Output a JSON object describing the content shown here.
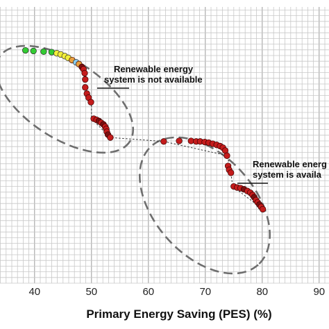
{
  "chart_data": {
    "type": "scatter",
    "xlabel": "Primary Energy Saving (PES) (%)",
    "ylabel": "",
    "title": "",
    "xlim": [
      38,
      96
    ],
    "xticks": [
      40,
      50,
      60,
      70,
      80,
      90
    ],
    "grid": true,
    "colors": {
      "red": "#c41c1c",
      "dark_red": "#7a1010",
      "green": "#33cc33",
      "yellow": "#f2ee3a",
      "light_blue": "#88ccee",
      "orange": "#e8a040",
      "ellipse": "#6e6e6e"
    },
    "annotations": [
      {
        "id": "not-available",
        "lines": [
          "Renewable energy",
          "system is not available"
        ]
      },
      {
        "id": "available",
        "lines": [
          "Renewable energ",
          "system is availa"
        ]
      }
    ],
    "series": [
      {
        "points": [
          {
            "x": 38.4,
            "y": 40.9,
            "c": "green"
          },
          {
            "x": 39.8,
            "y": 40.8,
            "c": "green"
          },
          {
            "x": 41.6,
            "y": 40.7,
            "c": "green"
          },
          {
            "x": 43.0,
            "y": 40.6,
            "c": "green"
          },
          {
            "x": 43.9,
            "y": 40.4,
            "c": "yellow"
          },
          {
            "x": 44.6,
            "y": 40.2,
            "c": "yellow"
          },
          {
            "x": 45.3,
            "y": 39.9,
            "c": "yellow"
          },
          {
            "x": 45.9,
            "y": 39.6,
            "c": "yellow"
          },
          {
            "x": 46.6,
            "y": 39.2,
            "c": "orange"
          },
          {
            "x": 47.3,
            "y": 38.8,
            "c": "light_blue"
          },
          {
            "x": 47.8,
            "y": 38.5,
            "c": "orange"
          },
          {
            "x": 48.3,
            "y": 38.0,
            "c": "dark_red"
          },
          {
            "x": 48.6,
            "y": 37.6,
            "c": "red"
          },
          {
            "x": 48.8,
            "y": 36.9,
            "c": "red"
          },
          {
            "x": 48.9,
            "y": 35.8,
            "c": "red"
          },
          {
            "x": 48.9,
            "y": 34.4,
            "c": "red"
          },
          {
            "x": 49.2,
            "y": 33.3,
            "c": "red"
          },
          {
            "x": 49.5,
            "y": 32.6,
            "c": "red"
          },
          {
            "x": 49.9,
            "y": 31.8,
            "c": "red"
          },
          {
            "x": 50.4,
            "y": 28.9,
            "c": "red"
          },
          {
            "x": 50.9,
            "y": 28.7,
            "c": "red"
          },
          {
            "x": 51.3,
            "y": 28.5,
            "c": "dark_red"
          },
          {
            "x": 51.7,
            "y": 28.2,
            "c": "red"
          },
          {
            "x": 52.1,
            "y": 27.9,
            "c": "dark_red"
          },
          {
            "x": 52.4,
            "y": 27.5,
            "c": "red"
          },
          {
            "x": 52.6,
            "y": 27.1,
            "c": "red"
          },
          {
            "x": 52.7,
            "y": 26.6,
            "c": "red"
          },
          {
            "x": 52.9,
            "y": 26.1,
            "c": "dark_red"
          },
          {
            "x": 53.3,
            "y": 25.6,
            "c": "red"
          },
          {
            "x": 62.7,
            "y": 24.9,
            "c": "red"
          },
          {
            "x": 65.4,
            "y": 25.0,
            "c": "red"
          },
          {
            "x": 67.5,
            "y": 25.0,
            "c": "red"
          },
          {
            "x": 68.4,
            "y": 24.9,
            "c": "red"
          },
          {
            "x": 69.1,
            "y": 24.9,
            "c": "red"
          },
          {
            "x": 69.9,
            "y": 24.8,
            "c": "red"
          },
          {
            "x": 70.6,
            "y": 24.7,
            "c": "red"
          },
          {
            "x": 71.3,
            "y": 24.5,
            "c": "red"
          },
          {
            "x": 72.0,
            "y": 24.3,
            "c": "red"
          },
          {
            "x": 72.6,
            "y": 24.1,
            "c": "red"
          },
          {
            "x": 73.1,
            "y": 23.8,
            "c": "red"
          },
          {
            "x": 73.5,
            "y": 23.3,
            "c": "red"
          },
          {
            "x": 73.8,
            "y": 22.4,
            "c": "red"
          },
          {
            "x": 74.0,
            "y": 20.6,
            "c": "red"
          },
          {
            "x": 74.2,
            "y": 19.9,
            "c": "red"
          },
          {
            "x": 74.5,
            "y": 19.4,
            "c": "red"
          },
          {
            "x": 75.0,
            "y": 17.0,
            "c": "red"
          },
          {
            "x": 75.6,
            "y": 16.8,
            "c": "red"
          },
          {
            "x": 76.2,
            "y": 16.7,
            "c": "red"
          },
          {
            "x": 76.8,
            "y": 16.5,
            "c": "dark_red"
          },
          {
            "x": 77.4,
            "y": 16.2,
            "c": "red"
          },
          {
            "x": 77.9,
            "y": 15.9,
            "c": "red"
          },
          {
            "x": 78.3,
            "y": 15.5,
            "c": "red"
          },
          {
            "x": 78.6,
            "y": 15.1,
            "c": "dark_red"
          },
          {
            "x": 78.9,
            "y": 14.6,
            "c": "red"
          },
          {
            "x": 79.2,
            "y": 14.2,
            "c": "red"
          },
          {
            "x": 79.5,
            "y": 13.8,
            "c": "dark_red"
          },
          {
            "x": 79.8,
            "y": 13.4,
            "c": "red"
          },
          {
            "x": 80.1,
            "y": 13.0,
            "c": "red"
          }
        ]
      }
    ],
    "connector_x": [
      48.4,
      48.9,
      50.0,
      50.0,
      53.3,
      62.7,
      73.9,
      74.5,
      74.8,
      80.1
    ],
    "connector_y": [
      38.0,
      32.6,
      31.8,
      28.9,
      25.6,
      24.9,
      22.4,
      19.4,
      17.0,
      13.0
    ]
  }
}
